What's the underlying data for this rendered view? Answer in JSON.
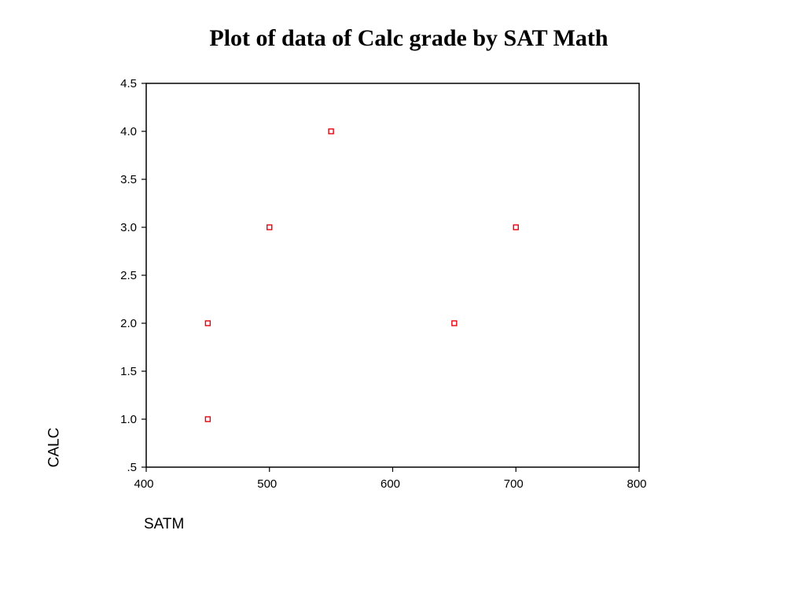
{
  "chart_data": {
    "type": "scatter",
    "title": "Plot of data of Calc grade by SAT Math",
    "xlabel": "SATM",
    "ylabel": "CALC",
    "xlim": [
      400,
      800
    ],
    "ylim": [
      0.5,
      4.5
    ],
    "x_ticks": [
      400,
      500,
      600,
      700,
      800
    ],
    "x_tick_labels": [
      "400",
      "500",
      "600",
      "700",
      "800"
    ],
    "y_ticks": [
      0.5,
      1.0,
      1.5,
      2.0,
      2.5,
      3.0,
      3.5,
      4.0,
      4.5
    ],
    "y_tick_labels": [
      ".5",
      "1.0",
      "1.5",
      "2.0",
      "2.5",
      "3.0",
      "3.5",
      "4.0",
      "4.5"
    ],
    "grid": false,
    "marker": "open-square",
    "marker_color": "#e8000b",
    "points": [
      {
        "x": 450,
        "y": 2.0
      },
      {
        "x": 450,
        "y": 1.0
      },
      {
        "x": 500,
        "y": 3.0
      },
      {
        "x": 550,
        "y": 4.0
      },
      {
        "x": 650,
        "y": 2.0
      },
      {
        "x": 700,
        "y": 3.0
      }
    ]
  }
}
